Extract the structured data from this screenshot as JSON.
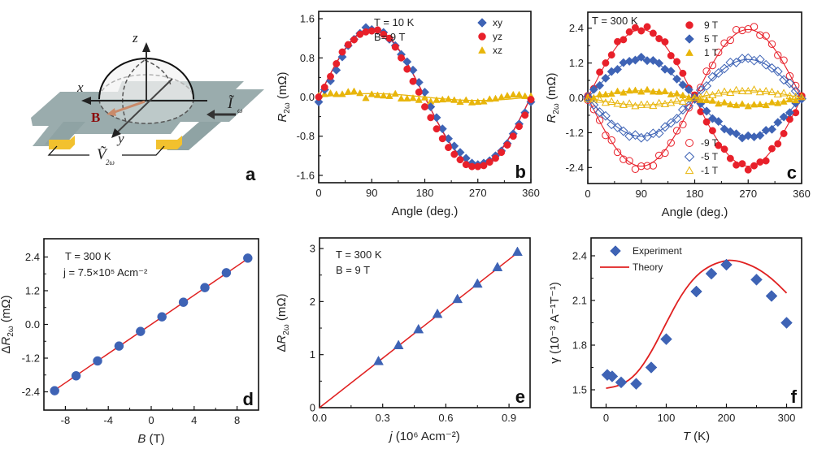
{
  "figure": {
    "colors": {
      "blue": "#3e63b5",
      "red": "#e8202a",
      "yellow": "#e8b50a",
      "fit_red": "#e02020",
      "slab": "#8fa3a4",
      "contact": "#f2c12e",
      "b_arrow": "#c98a6a",
      "b_label": "#8b0d0d"
    }
  },
  "diagram": {
    "letter": "a",
    "labels": {
      "z": "z",
      "x": "x",
      "y": "y",
      "B": "B",
      "current": "Ĩ",
      "current_sub": "ω",
      "voltage": "Ṽ",
      "voltage_sub": "2ω"
    }
  },
  "chart_data": [
    {
      "id": "b",
      "type": "scatter",
      "letter": "b",
      "xlabel": "Angle (deg.)",
      "ylabel_main": "R",
      "ylabel_sub": "2ω",
      "ylabel_unit": " (mΩ)",
      "xlim": [
        0,
        360
      ],
      "ylim": [
        -1.75,
        1.75
      ],
      "xticks": [
        0,
        90,
        180,
        270,
        360
      ],
      "xtick_labels": [
        "0",
        "90",
        "180",
        "270",
        "360"
      ],
      "yticks": [
        -1.6,
        -0.8,
        0.0,
        0.8,
        1.6
      ],
      "ytick_labels": [
        "-1.6",
        "-0.8",
        "0.0",
        "0.8",
        "1.6"
      ],
      "annotations": [
        "T = 10 K",
        "B= 9 T"
      ],
      "legend_position": "top-right",
      "grid": false,
      "series": [
        {
          "name": "xy",
          "marker": "diamond",
          "filled": true,
          "color": "#3e63b5",
          "amplitude": 1.4,
          "x": [
            0,
            10,
            20,
            30,
            40,
            50,
            60,
            70,
            80,
            90,
            100,
            110,
            120,
            130,
            140,
            150,
            160,
            170,
            180,
            190,
            200,
            210,
            220,
            230,
            240,
            250,
            260,
            270,
            280,
            290,
            300,
            310,
            320,
            330,
            340,
            350,
            360
          ],
          "y": [
            -0.1,
            0.15,
            0.33,
            0.55,
            0.82,
            1.05,
            1.18,
            1.3,
            1.42,
            1.38,
            1.36,
            1.32,
            1.18,
            1.05,
            0.87,
            0.72,
            0.55,
            0.3,
            0.1,
            -0.2,
            -0.42,
            -0.65,
            -0.85,
            -1.0,
            -1.13,
            -1.25,
            -1.35,
            -1.38,
            -1.35,
            -1.3,
            -1.2,
            -1.1,
            -0.95,
            -0.75,
            -0.55,
            -0.32,
            -0.1
          ]
        },
        {
          "name": "yz",
          "marker": "circle",
          "filled": true,
          "color": "#e8202a",
          "amplitude": 1.4,
          "x": [
            0,
            10,
            20,
            30,
            40,
            50,
            60,
            70,
            80,
            90,
            100,
            110,
            120,
            130,
            140,
            150,
            160,
            170,
            180,
            190,
            200,
            210,
            220,
            230,
            240,
            250,
            260,
            270,
            280,
            290,
            300,
            310,
            320,
            330,
            340,
            350,
            360
          ],
          "y": [
            0.0,
            0.2,
            0.42,
            0.68,
            0.92,
            1.07,
            1.17,
            1.28,
            1.33,
            1.35,
            1.37,
            1.28,
            1.2,
            1.02,
            0.8,
            0.57,
            0.32,
            0.1,
            -0.2,
            -0.42,
            -0.65,
            -0.85,
            -1.03,
            -1.17,
            -1.28,
            -1.38,
            -1.42,
            -1.42,
            -1.4,
            -1.33,
            -1.25,
            -1.13,
            -0.98,
            -0.8,
            -0.6,
            -0.37,
            -0.05
          ]
        },
        {
          "name": "xz",
          "marker": "triangle",
          "filled": true,
          "color": "#e8b50a",
          "amplitude": 0.08,
          "x": [
            0,
            10,
            20,
            30,
            40,
            50,
            60,
            70,
            80,
            90,
            100,
            110,
            120,
            130,
            140,
            150,
            160,
            170,
            180,
            190,
            200,
            210,
            220,
            230,
            240,
            250,
            260,
            270,
            280,
            290,
            300,
            310,
            320,
            330,
            340,
            350,
            360
          ],
          "y": [
            0.03,
            0.06,
            0.08,
            0.06,
            0.06,
            0.11,
            0.12,
            0.08,
            -0.02,
            0.06,
            0.04,
            0.03,
            0.02,
            0.07,
            -0.03,
            -0.03,
            -0.02,
            -0.06,
            -0.01,
            -0.09,
            -0.06,
            -0.05,
            -0.04,
            -0.06,
            -0.1,
            -0.06,
            -0.11,
            -0.1,
            -0.09,
            -0.04,
            -0.03,
            0.0,
            0.03,
            0.05,
            0.05,
            0.02,
            0.02
          ]
        }
      ],
      "fits": [
        {
          "name": "xy fit",
          "color": "#3e63b5",
          "amplitude": 1.38
        },
        {
          "name": "yz fit",
          "color": "#e8202a",
          "amplitude": 1.4
        },
        {
          "name": "xz fit",
          "color": "#e8b50a",
          "amplitude": 0.07
        }
      ]
    },
    {
      "id": "c",
      "type": "scatter",
      "letter": "c",
      "xlabel": "Angle (deg.)",
      "ylabel_main": "R",
      "ylabel_sub": "2ω",
      "ylabel_unit": " (mΩ)",
      "xlim": [
        0,
        360
      ],
      "ylim": [
        -2.95,
        2.95
      ],
      "xticks": [
        0,
        90,
        180,
        270,
        360
      ],
      "xtick_labels": [
        "0",
        "90",
        "180",
        "270",
        "360"
      ],
      "yticks": [
        -2.4,
        -1.2,
        0.0,
        1.2,
        2.4
      ],
      "ytick_labels": [
        "-2.4",
        "-1.2",
        "0.0",
        "1.2",
        "2.4"
      ],
      "annotations": [
        "T = 300 K"
      ],
      "legend_position": "top-center / bottom-center",
      "grid": false,
      "series": [
        {
          "name": "9 T",
          "marker": "circle",
          "filled": true,
          "color": "#e8202a",
          "amplitude": 2.4
        },
        {
          "name": "5 T",
          "marker": "diamond",
          "filled": true,
          "color": "#3e63b5",
          "amplitude": 1.35
        },
        {
          "name": "1 T",
          "marker": "triangle",
          "filled": true,
          "color": "#e8b50a",
          "amplitude": 0.25
        },
        {
          "name": "-9 T",
          "marker": "circle",
          "filled": false,
          "color": "#e8202a",
          "amplitude": -2.4
        },
        {
          "name": "-5 T",
          "marker": "diamond",
          "filled": false,
          "color": "#3e63b5",
          "amplitude": -1.35
        },
        {
          "name": "-1 T",
          "marker": "triangle",
          "filled": false,
          "color": "#e8b50a",
          "amplitude": -0.25
        }
      ],
      "x_step_deg": 10,
      "model": "R = amplitude * sin(angle)"
    },
    {
      "id": "d",
      "type": "scatter",
      "letter": "d",
      "xlabel_main": "B",
      "xlabel_unit": " (T)",
      "ylabel_prefix": "Δ",
      "ylabel_main": "R",
      "ylabel_sub": "2ω",
      "ylabel_unit": " (mΩ)",
      "xlim": [
        -10,
        10
      ],
      "ylim": [
        -3.05,
        3.05
      ],
      "xticks": [
        -8,
        -4,
        0,
        4,
        8
      ],
      "xtick_labels": [
        "-8",
        "-4",
        "0",
        "4",
        "8"
      ],
      "xminor": [
        -6,
        -2,
        2,
        6
      ],
      "yticks": [
        -2.4,
        -1.2,
        0.0,
        1.2,
        2.4
      ],
      "ytick_labels": [
        "-2.4",
        "-1.2",
        "0.0",
        "1.2",
        "2.4"
      ],
      "annotations": [
        "T = 300 K",
        "j = 7.5×10⁵ Acm⁻²"
      ],
      "grid": false,
      "series": [
        {
          "name": "data",
          "marker": "circle",
          "color": "#3e63b5",
          "x": [
            -9,
            -7,
            -5,
            -3,
            -1,
            1,
            3,
            5,
            7,
            9
          ],
          "y": [
            -2.36,
            -1.83,
            -1.3,
            -0.77,
            -0.25,
            0.27,
            0.79,
            1.31,
            1.84,
            2.36
          ]
        }
      ],
      "fit": {
        "name": "linear fit",
        "color": "#e02020",
        "x": [
          -9,
          9
        ],
        "y": [
          -2.34,
          2.34
        ]
      }
    },
    {
      "id": "e",
      "type": "scatter",
      "letter": "e",
      "xlabel_main": "j",
      "xlabel_unit": " (10⁶ Acm⁻²)",
      "ylabel_prefix": "Δ",
      "ylabel_main": "R",
      "ylabel_sub": "2ω",
      "ylabel_unit": " (mΩ)",
      "xlim": [
        0,
        1.0
      ],
      "ylim": [
        0,
        3.2
      ],
      "xticks": [
        0.0,
        0.3,
        0.6,
        0.9
      ],
      "xtick_labels": [
        "0.0",
        "0.3",
        "0.6",
        "0.9"
      ],
      "yticks": [
        0,
        1,
        2,
        3
      ],
      "ytick_labels": [
        "0",
        "1",
        "2",
        "3"
      ],
      "annotations": [
        "T = 300 K",
        "B = 9 T"
      ],
      "grid": false,
      "series": [
        {
          "name": "data",
          "marker": "triangle",
          "color": "#3e63b5",
          "x": [
            0.28,
            0.375,
            0.47,
            0.56,
            0.655,
            0.75,
            0.845,
            0.94
          ],
          "y": [
            0.88,
            1.18,
            1.48,
            1.77,
            2.05,
            2.34,
            2.65,
            2.94
          ]
        }
      ],
      "fit": {
        "name": "linear fit",
        "color": "#e02020",
        "x": [
          0,
          0.94
        ],
        "y": [
          0,
          2.92
        ]
      }
    },
    {
      "id": "f",
      "type": "scatter",
      "letter": "f",
      "xlabel_main": "T",
      "xlabel_unit": " (K)",
      "ylabel": "γ (10⁻³ A⁻¹T⁻¹)",
      "xlim": [
        -25,
        325
      ],
      "ylim": [
        1.38,
        2.52
      ],
      "xticks": [
        0,
        100,
        200,
        300
      ],
      "xtick_labels": [
        "0",
        "100",
        "200",
        "300"
      ],
      "xminor": [
        50,
        150,
        250
      ],
      "yticks": [
        1.5,
        1.8,
        2.1,
        2.4
      ],
      "ytick_labels": [
        "1.5",
        "1.8",
        "2.1",
        "2.4"
      ],
      "legend_position": "top-left",
      "grid": false,
      "series": [
        {
          "name": "Experiment",
          "marker": "diamond",
          "color": "#3e63b5",
          "x": [
            2,
            10,
            25,
            50,
            75,
            100,
            150,
            175,
            200,
            250,
            275,
            300
          ],
          "y": [
            1.6,
            1.59,
            1.55,
            1.54,
            1.65,
            1.84,
            2.16,
            2.28,
            2.34,
            2.24,
            2.13,
            1.95
          ]
        }
      ],
      "theory": {
        "name": "Theory",
        "color": "#e02020",
        "x": [
          0,
          25,
          50,
          75,
          100,
          125,
          150,
          175,
          200,
          210,
          225,
          250,
          275,
          300
        ],
        "y": [
          1.51,
          1.53,
          1.6,
          1.75,
          1.95,
          2.14,
          2.27,
          2.34,
          2.37,
          2.37,
          2.36,
          2.32,
          2.25,
          2.15
        ]
      }
    }
  ]
}
